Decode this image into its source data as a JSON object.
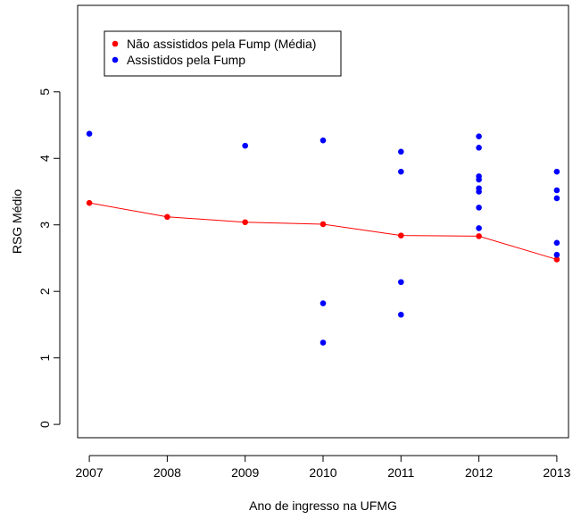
{
  "chart_data": {
    "type": "scatter",
    "title": "",
    "xlabel": "Ano de ingresso na UFMG",
    "ylabel": "RSG Médio",
    "xlim": [
      2006.85,
      2013.15
    ],
    "ylim": [
      -0.2,
      6.3
    ],
    "xticks": [
      2007,
      2008,
      2009,
      2010,
      2011,
      2012,
      2013
    ],
    "yticks": [
      0,
      1,
      2,
      3,
      4,
      5
    ],
    "grid": false,
    "legend_position": "top-left",
    "series": [
      {
        "name": "Não assistidos pela Fump (Média)",
        "color": "#ff0000",
        "style": "line+points",
        "points": [
          {
            "x": 2007,
            "y": 3.33
          },
          {
            "x": 2008,
            "y": 3.12
          },
          {
            "x": 2009,
            "y": 3.04
          },
          {
            "x": 2010,
            "y": 3.01
          },
          {
            "x": 2011,
            "y": 2.84
          },
          {
            "x": 2012,
            "y": 2.83
          },
          {
            "x": 2013,
            "y": 2.48
          }
        ]
      },
      {
        "name": "Assistidos pela Fump",
        "color": "#0000ff",
        "style": "points",
        "points": [
          {
            "x": 2007,
            "y": 4.37
          },
          {
            "x": 2009,
            "y": 4.19
          },
          {
            "x": 2010,
            "y": 4.27
          },
          {
            "x": 2010,
            "y": 1.82
          },
          {
            "x": 2010,
            "y": 1.23
          },
          {
            "x": 2011,
            "y": 4.1
          },
          {
            "x": 2011,
            "y": 3.8
          },
          {
            "x": 2011,
            "y": 2.14
          },
          {
            "x": 2011,
            "y": 1.65
          },
          {
            "x": 2012,
            "y": 4.33
          },
          {
            "x": 2012,
            "y": 4.16
          },
          {
            "x": 2012,
            "y": 3.73
          },
          {
            "x": 2012,
            "y": 3.68
          },
          {
            "x": 2012,
            "y": 3.55
          },
          {
            "x": 2012,
            "y": 3.5
          },
          {
            "x": 2012,
            "y": 3.26
          },
          {
            "x": 2012,
            "y": 2.95
          },
          {
            "x": 2013,
            "y": 3.8
          },
          {
            "x": 2013,
            "y": 3.52
          },
          {
            "x": 2013,
            "y": 3.4
          },
          {
            "x": 2013,
            "y": 2.73
          },
          {
            "x": 2013,
            "y": 2.55
          }
        ]
      }
    ]
  }
}
